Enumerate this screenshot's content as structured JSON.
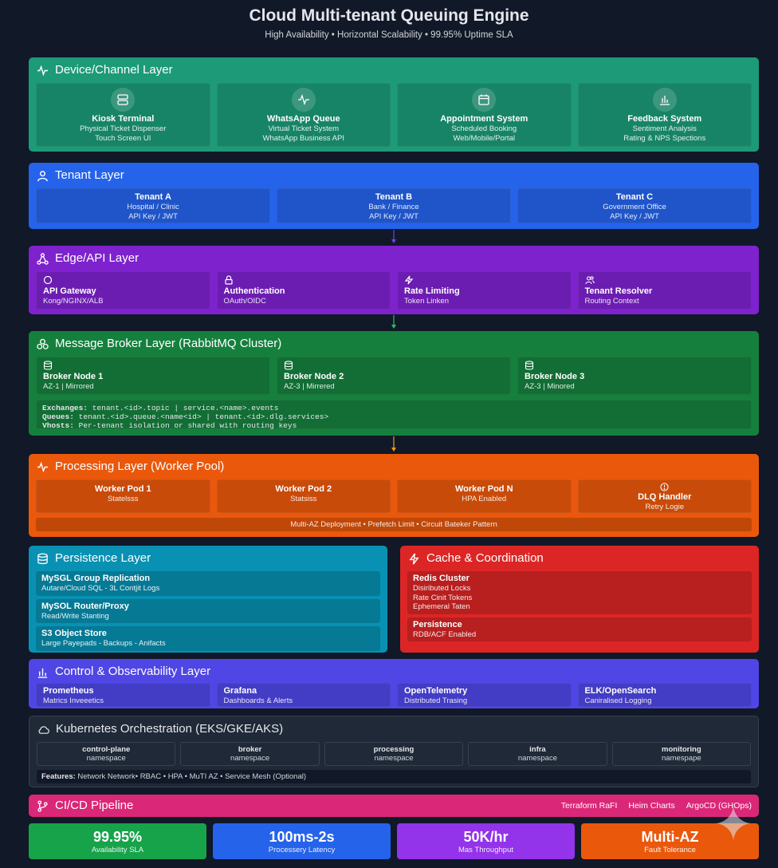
{
  "header": {
    "title": "Cloud Multi-tenant Queuing Engine",
    "subtitle": "High Availability • Horizontal Scalability • 99.95% Uptime SLA"
  },
  "device_layer": {
    "title": "Device/Channel Layer",
    "color": "#1d9a78",
    "cards": [
      {
        "name": "Kiosk Terminal",
        "line1": "Physical Ticket Dispenser",
        "line2": "Touch Screen UI",
        "icon": "server-icon"
      },
      {
        "name": "WhatsApp Queue",
        "line1": "Virtual Ticket System",
        "line2": "WhatsApp Business API",
        "icon": "activity-icon"
      },
      {
        "name": "Appointment System",
        "line1": "Scheduled Booking",
        "line2": "Web/Mobile/Portal",
        "icon": "calendar-icon"
      },
      {
        "name": "Feedback System",
        "line1": "Sentiment Analysis",
        "line2": "Rating & NPS Spections",
        "icon": "bar-chart-icon"
      }
    ]
  },
  "tenant_layer": {
    "title": "Tenant Layer",
    "color": "#2563eb",
    "cards": [
      {
        "name": "Tenant A",
        "line1": "Hospital / Clinic",
        "line2": "API Key / JWT"
      },
      {
        "name": "Tenant B",
        "line1": "Bank / Finance",
        "line2": "API Key / JWT"
      },
      {
        "name": "Tenant C",
        "line1": "Government Office",
        "line2": "API Key / JWT"
      }
    ]
  },
  "edge_layer": {
    "title": "Edge/API Layer",
    "color": "#7e22ce",
    "cards": [
      {
        "name": "API Gateway",
        "line1": "Kong/NGINX/ALB",
        "icon": "circle-icon"
      },
      {
        "name": "Authentication",
        "line1": "OAuth/OIDC",
        "icon": "lock-icon"
      },
      {
        "name": "Rate Limiting",
        "line1": "Token Linken",
        "icon": "zap-icon"
      },
      {
        "name": "Tenant Resolver",
        "line1": "Routing Context",
        "icon": "users-icon"
      }
    ]
  },
  "broker_layer": {
    "title": "Message Broker Layer (RabbitMQ Cluster)",
    "color": "#15803d",
    "nodes": [
      {
        "name": "Broker Node 1",
        "line1": "AZ-1 | Mirrored"
      },
      {
        "name": "Broker Node 2",
        "line1": "AZ-3 | Mirrered"
      },
      {
        "name": "Broker Node 3",
        "line1": "AZ-3 | Minored"
      }
    ],
    "config": [
      {
        "key": "Exchanges:",
        "value": "tenant.<id>.topic | service.<name>.events"
      },
      {
        "key": "Queues:",
        "value": "tenant.<id>.queue.<name<id> | tenant.<id>.dlg.services>"
      },
      {
        "key": "Vhosts:",
        "value": "Per-tenant isolation or shared with routing keys"
      }
    ]
  },
  "processing_layer": {
    "title": "Processing Layer (Worker Pool)",
    "color": "#ea580c",
    "cards": [
      {
        "name": "Worker Pod 1",
        "line1": "Statelsss"
      },
      {
        "name": "Worker Pod 2",
        "line1": "Statsiss"
      },
      {
        "name": "Worker Pod N",
        "line1": "HPA Enabled"
      },
      {
        "name": "DLQ Handler",
        "line1": "Retry Logie"
      }
    ],
    "footer": "Multi-AZ Deployment • Prefetch Limit • Circuit Bateker Pattern"
  },
  "persistence_layer": {
    "title": "Persistence Layer",
    "color": "#0891b2",
    "cards": [
      {
        "name": "MySGL Group Replication",
        "lines": [
          "Autare/Cloud SQL - 3L Contjit Logs"
        ]
      },
      {
        "name": "MySOL Router/Proxy",
        "lines": [
          "Read/Write Stanting"
        ]
      },
      {
        "name": "S3 Object Store",
        "lines": [
          "Large Payepads - Backups - Anifacts"
        ]
      }
    ]
  },
  "cache_layer": {
    "title": "Cache & Coordination",
    "color": "#dc2626",
    "cards": [
      {
        "name": "Redis Cluster",
        "lines": [
          "Disiributed Locks",
          "Rate Cinit Tokens",
          "Ephemeral Taten"
        ]
      },
      {
        "name": "Persistence",
        "lines": [
          "RDB/ACF Enabled"
        ]
      }
    ]
  },
  "control_layer": {
    "title": "Control & Observability Layer",
    "color": "#4f46e5",
    "cards": [
      {
        "name": "Prometheus",
        "line1": "Matrics Inveeetics"
      },
      {
        "name": "Grafana",
        "line1": "Dashboards & Alerts"
      },
      {
        "name": "OpenTelemetry",
        "line1": "Distributed Trasing"
      },
      {
        "name": "ELK/OpenSearch",
        "line1": "Caniralised Logging"
      }
    ]
  },
  "k8s_layer": {
    "title": "Kubernetes Orchestration (EKS/GKE/AKS)",
    "namespaces": [
      {
        "name": "control-plane",
        "label": "namespace"
      },
      {
        "name": "broker",
        "label": "namespace"
      },
      {
        "name": "processing",
        "label": "namespace"
      },
      {
        "name": "infra",
        "label": "namespace"
      },
      {
        "name": "monitoring",
        "label": "namespape"
      }
    ],
    "features_key": "Features:",
    "features_value": "Network Network• RBAC • HPA • MuTI AZ • Service Mesh (Optional)"
  },
  "cicd": {
    "title": "CI/CD Pipeline",
    "color": "#db2777",
    "tools": [
      "Terraform RaFI",
      "Heim Charts",
      "ArgoCD (GHOps)"
    ]
  },
  "metrics": [
    {
      "value": "99.95%",
      "label": "Availability SLA",
      "color": "#16a34a"
    },
    {
      "value": "100ms-2s",
      "label": "Processery Latency",
      "color": "#2563eb"
    },
    {
      "value": "50K/hr",
      "label": "Mas Throughput",
      "color": "#9333ea"
    },
    {
      "value": "Multi-AZ",
      "label": "Fault Tolerance",
      "color": "#ea580c"
    }
  ]
}
